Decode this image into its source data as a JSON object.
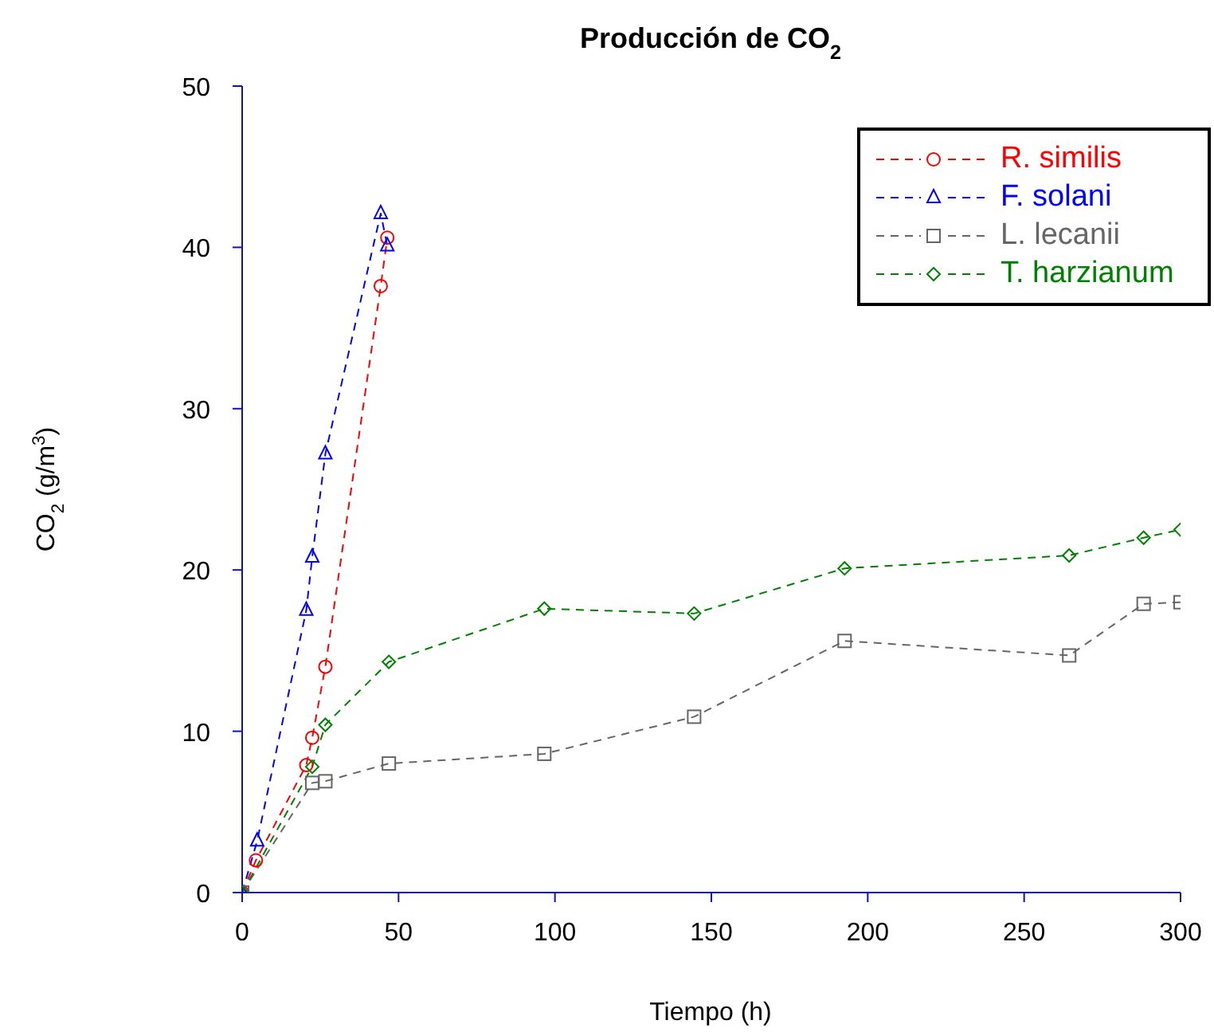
{
  "chart_data": {
    "type": "line",
    "title": "Producción de CO$_{2}$",
    "xlabel": "Tiempo (h)",
    "ylabel": "CO$_{2}$ (g/m$^{3}$)",
    "xlim": [
      0,
      300
    ],
    "xticks": [
      0,
      50,
      100,
      150,
      200,
      250,
      300
    ],
    "ylim": [
      0,
      50
    ],
    "yticks": [
      0,
      10,
      20,
      30,
      40,
      50
    ],
    "legend": "top right",
    "line_style": "dashed",
    "grid": false,
    "series": [
      {
        "name": "R. similis",
        "color": "#ff0000",
        "marker": "circle",
        "x": [
          0,
          4.4,
          20.5,
          22.4,
          26.6,
          44.3,
          46.4
        ],
        "values": [
          0,
          2.0,
          7.9,
          9.6,
          14.0,
          37.6,
          40.6
        ]
      },
      {
        "name": "F. solani",
        "color": "#0000ff",
        "marker": "triangle",
        "x": [
          0,
          4.8,
          20.5,
          22.4,
          26.6,
          44.3,
          46.4
        ],
        "values": [
          0,
          3.2,
          17.5,
          20.8,
          27.2,
          42.1,
          40.1
        ]
      },
      {
        "name": "L. lecanii",
        "color": "#666666",
        "marker": "square",
        "x": [
          0,
          22.4,
          26.6,
          46.9,
          96.6,
          144.5,
          192.6,
          264.4,
          288.2,
          300
        ],
        "values": [
          0,
          6.8,
          6.9,
          8.0,
          8.6,
          10.9,
          15.6,
          14.7,
          17.9,
          18.0
        ]
      },
      {
        "name": "T. harzianum",
        "color": "#008000",
        "marker": "diamond",
        "x": [
          0,
          22.4,
          26.6,
          46.9,
          96.6,
          144.5,
          192.6,
          264.4,
          288.2,
          300
        ],
        "values": [
          0,
          7.8,
          10.4,
          14.3,
          17.6,
          17.3,
          20.1,
          20.9,
          22.0,
          22.5
        ]
      }
    ]
  }
}
